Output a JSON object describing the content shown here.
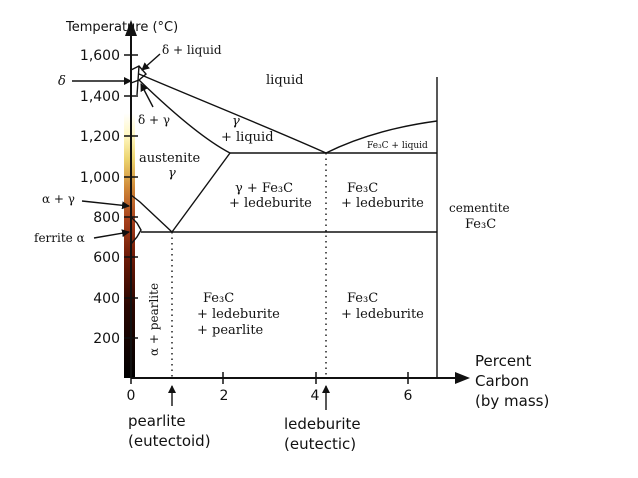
{
  "axes": {
    "y_title": "Temperature (°C)",
    "y_ticks": [
      "1,600",
      "1,400",
      "1,200",
      "1,000",
      "800",
      "600",
      "400",
      "200"
    ],
    "x_ticks": [
      "0",
      "2",
      "4",
      "6"
    ],
    "x_title_lines": [
      "Percent",
      "Carbon",
      "(by mass)"
    ]
  },
  "phases": {
    "delta": "δ",
    "delta_liquid": "δ + liquid",
    "delta_gamma": "δ + γ",
    "liquid": "liquid",
    "gamma": "γ",
    "plus_liquid": "+ liquid",
    "fe3c_liquid": "Fe₃C + liquid",
    "austenite": "austenite",
    "austenite_gamma": "γ",
    "gamma_fe3c": "γ + Fe₃C",
    "plus_ledeburite": "+ ledeburite",
    "fe3c": "Fe₃C",
    "cementite": "cementite",
    "alpha_gamma": "α + γ",
    "ferrite_alpha": "ferrite α",
    "alpha_pearlite": "α + pearlite",
    "plus_pearlite": "+ pearlite"
  },
  "points": {
    "pearlite": "pearlite",
    "pearlite_sub": "(eutectoid)",
    "ledeburite": "ledeburite",
    "ledeburite_sub": "(eutectic)"
  },
  "colors": {
    "gradient": [
      "#000000",
      "#3a0a00",
      "#7a1c08",
      "#b24a20",
      "#d9a040",
      "#f0e080",
      "#ffffd0"
    ]
  }
}
